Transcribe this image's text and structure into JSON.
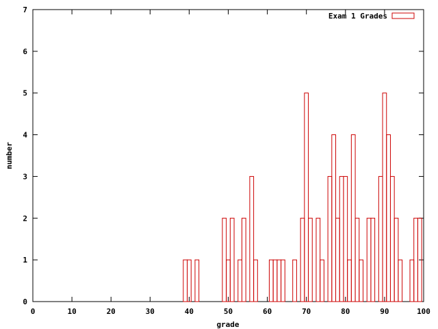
{
  "chart_data": {
    "type": "bar",
    "subtype": "histogram-step",
    "xlabel": "grade",
    "ylabel": "number",
    "xlim": [
      0,
      100
    ],
    "ylim": [
      0,
      7
    ],
    "xticks": [
      0,
      10,
      20,
      30,
      40,
      50,
      60,
      70,
      80,
      90,
      100
    ],
    "yticks": [
      0,
      1,
      2,
      3,
      4,
      5,
      6,
      7
    ],
    "grid": false,
    "legend_position": "top-right",
    "series": [
      {
        "name": "Exam 1 Grades",
        "color": "#cc0000",
        "x": [
          39,
          40,
          42,
          49,
          50,
          51,
          53,
          54,
          56,
          57,
          61,
          62,
          63,
          64,
          67,
          69,
          70,
          71,
          73,
          74,
          76,
          77,
          78,
          79,
          80,
          81,
          82,
          83,
          84,
          86,
          87,
          89,
          90,
          91,
          92,
          93,
          94,
          97,
          98,
          99
        ],
        "values": [
          1,
          1,
          1,
          2,
          1,
          2,
          1,
          2,
          3,
          1,
          1,
          1,
          1,
          1,
          1,
          2,
          5,
          2,
          2,
          1,
          3,
          4,
          2,
          3,
          3,
          1,
          4,
          2,
          1,
          2,
          2,
          3,
          5,
          4,
          3,
          2,
          1,
          1,
          2,
          2
        ]
      }
    ]
  }
}
